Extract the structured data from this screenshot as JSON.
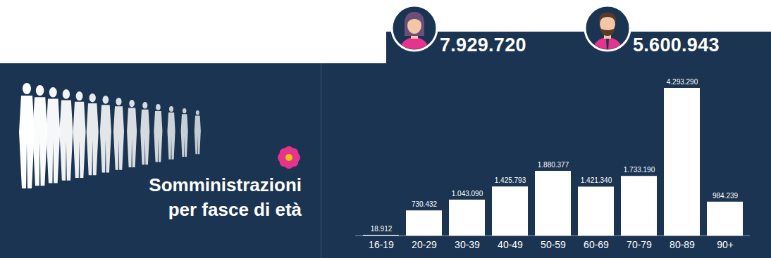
{
  "chart_data": {
    "type": "bar",
    "title": "Somministrazioni per fasce di età",
    "categories": [
      "16-19",
      "20-29",
      "30-39",
      "40-49",
      "50-59",
      "60-69",
      "70-79",
      "80-89",
      "90+"
    ],
    "values": [
      18912,
      730432,
      1043090,
      1425793,
      1880377,
      1421340,
      1733190,
      4293290,
      984239
    ],
    "value_labels": [
      "18.912",
      "730.432",
      "1.043.090",
      "1.425.793",
      "1.880.377",
      "1.421.340",
      "1.733.190",
      "4.293.290",
      "984.239"
    ],
    "color": "#ffffff",
    "ylim": [
      0,
      4293290
    ],
    "data_labels": true,
    "tick_labels": "x"
  },
  "header": {
    "women": "7.929.720",
    "men": "5.600.943"
  }
}
